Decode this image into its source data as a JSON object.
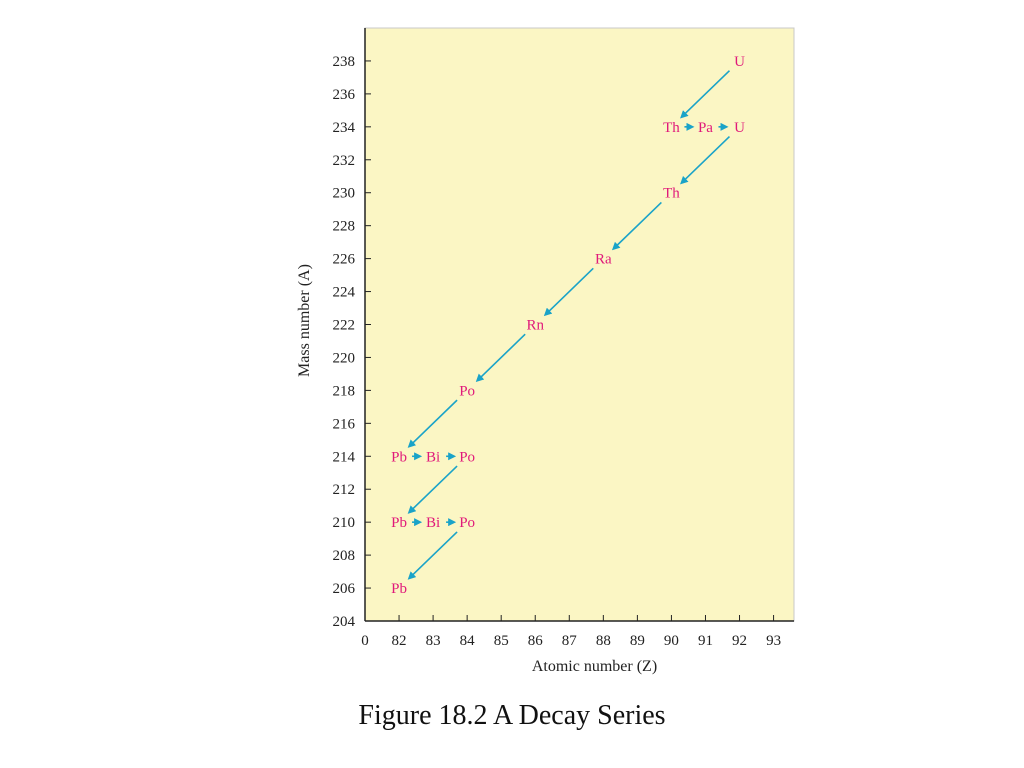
{
  "caption": "Figure 18.2 A Decay Series",
  "colors": {
    "plot_bg": "#fbf6c4",
    "node": "#e0197a",
    "arrow": "#1aa3c8",
    "axis": "#222222"
  },
  "chart_data": {
    "type": "scatter",
    "title": "",
    "xlabel": "Atomic number (Z)",
    "ylabel": "Mass number (A)",
    "x_ticks": [
      "0",
      "82",
      "83",
      "84",
      "85",
      "86",
      "87",
      "88",
      "89",
      "90",
      "91",
      "92",
      "93"
    ],
    "x_tick_values": [
      81,
      82,
      83,
      84,
      85,
      86,
      87,
      88,
      89,
      90,
      91,
      92,
      93
    ],
    "y_ticks": [
      204,
      206,
      208,
      210,
      212,
      214,
      216,
      218,
      220,
      222,
      224,
      226,
      228,
      230,
      232,
      234,
      236,
      238
    ],
    "xlim": [
      81,
      93.6
    ],
    "ylim": [
      204,
      240
    ],
    "grid": false,
    "nuclides": [
      {
        "label": "U",
        "z": 92,
        "a": 238
      },
      {
        "label": "Th",
        "z": 90,
        "a": 234
      },
      {
        "label": "Pa",
        "z": 91,
        "a": 234
      },
      {
        "label": "U",
        "z": 92,
        "a": 234
      },
      {
        "label": "Th",
        "z": 90,
        "a": 230
      },
      {
        "label": "Ra",
        "z": 88,
        "a": 226
      },
      {
        "label": "Rn",
        "z": 86,
        "a": 222
      },
      {
        "label": "Po",
        "z": 84,
        "a": 218
      },
      {
        "label": "Pb",
        "z": 82,
        "a": 214
      },
      {
        "label": "Bi",
        "z": 83,
        "a": 214
      },
      {
        "label": "Po",
        "z": 84,
        "a": 214
      },
      {
        "label": "Pb",
        "z": 82,
        "a": 210
      },
      {
        "label": "Bi",
        "z": 83,
        "a": 210
      },
      {
        "label": "Po",
        "z": 84,
        "a": 210
      },
      {
        "label": "Pb",
        "z": 82,
        "a": 206
      }
    ],
    "decays": [
      {
        "from": 0,
        "to": 1,
        "kind": "alpha"
      },
      {
        "from": 1,
        "to": 2,
        "kind": "beta"
      },
      {
        "from": 2,
        "to": 3,
        "kind": "beta"
      },
      {
        "from": 3,
        "to": 4,
        "kind": "alpha"
      },
      {
        "from": 4,
        "to": 5,
        "kind": "alpha"
      },
      {
        "from": 5,
        "to": 6,
        "kind": "alpha"
      },
      {
        "from": 6,
        "to": 7,
        "kind": "alpha"
      },
      {
        "from": 7,
        "to": 8,
        "kind": "alpha"
      },
      {
        "from": 8,
        "to": 9,
        "kind": "beta"
      },
      {
        "from": 9,
        "to": 10,
        "kind": "beta"
      },
      {
        "from": 10,
        "to": 11,
        "kind": "alpha"
      },
      {
        "from": 11,
        "to": 12,
        "kind": "beta"
      },
      {
        "from": 12,
        "to": 13,
        "kind": "beta"
      },
      {
        "from": 13,
        "to": 14,
        "kind": "alpha"
      }
    ]
  }
}
